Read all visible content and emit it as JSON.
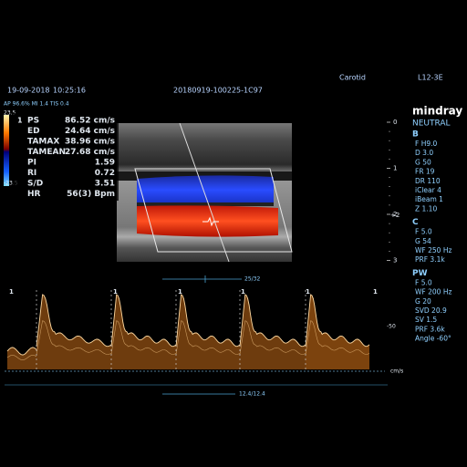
{
  "header": {
    "date": "19-09-2018",
    "time": "10:25:16",
    "exam_id": "20180919-100225-1C97",
    "preset": "Carotid",
    "probe": "L12-3E",
    "safety": "AP 96.6% MI 1.4 TIS 0.4"
  },
  "color_scale": {
    "top": "23.5",
    "bottom": "-23.5"
  },
  "measurements": {
    "marker": "1",
    "rows": [
      [
        "PS",
        "86.52 cm/s"
      ],
      [
        "ED",
        "24.64 cm/s"
      ],
      [
        "TAMAX",
        "38.96 cm/s"
      ],
      [
        "TAMEAN",
        "27.68 cm/s"
      ],
      [
        "PI",
        "1.59"
      ],
      [
        "RI",
        "0.72"
      ],
      [
        "S/D",
        "3.51"
      ],
      [
        "HR",
        "56(3) Bpm"
      ]
    ]
  },
  "depth_scale": [
    "0",
    "1",
    "2",
    "3"
  ],
  "focus_marker": "+2",
  "panel": {
    "brand": "mindray",
    "mode": "NEUTRAL",
    "sections": [
      {
        "title": "B",
        "items": [
          "F H9.0",
          "D 3.0",
          "G 50",
          "FR 19",
          "DR 110",
          "iClear 4",
          "iBeam 1",
          "Z 1.10"
        ]
      },
      {
        "title": "C",
        "items": [
          "F 5.0",
          "G 54",
          "WF 250 Hz",
          "PRF 3.1k"
        ]
      },
      {
        "title": "PW",
        "items": [
          "F 5.0",
          "WF 200 Hz",
          "G 20",
          "SVD 20.9",
          "SV 1.5",
          "PRF 3.6k",
          "Angle -60°"
        ]
      }
    ]
  },
  "doppler": {
    "gate": "25/32",
    "sweep": "12.4/12.4",
    "scale": "-50",
    "unit": "cm/s",
    "cycle_marker": "1"
  }
}
